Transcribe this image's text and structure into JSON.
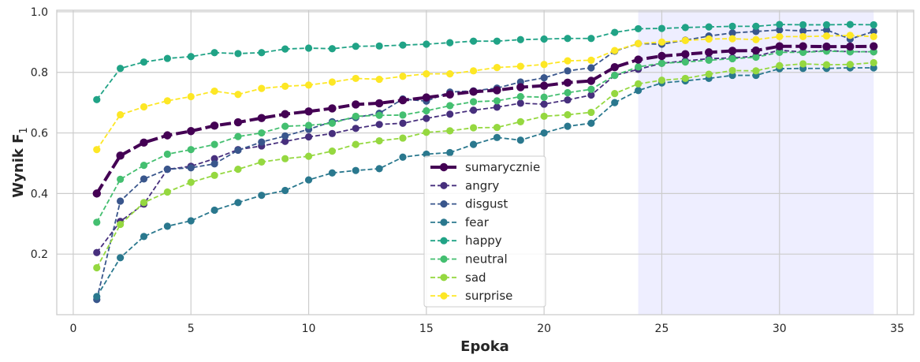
{
  "chart_data": {
    "type": "line",
    "xlabel": "Epoka",
    "ylabel": "Wynik F",
    "ylabel_sub": "1",
    "xlim": [
      -0.7,
      35.7
    ],
    "ylim": [
      0.0,
      1.005
    ],
    "xticks": [
      0,
      5,
      10,
      15,
      20,
      25,
      30,
      35
    ],
    "yticks": [
      0.2,
      0.4,
      0.6,
      0.8,
      1.0
    ],
    "ytick_labels": [
      "0.2",
      "0.4",
      "0.6",
      "0.8",
      "1.0"
    ],
    "grid": true,
    "legend_position": "lower-center",
    "highlight_span": {
      "x_start": 24,
      "x_end": 34,
      "color": "#eeeeff"
    },
    "x": [
      1,
      2,
      3,
      4,
      5,
      6,
      7,
      8,
      9,
      10,
      11,
      12,
      13,
      14,
      15,
      16,
      17,
      18,
      19,
      20,
      21,
      22,
      23,
      24,
      25,
      26,
      27,
      28,
      29,
      30,
      31,
      32,
      33,
      34
    ],
    "series": [
      {
        "name": "sumarycznie",
        "color": "#440154",
        "bold": true,
        "values": [
          0.4,
          0.525,
          0.568,
          0.592,
          0.606,
          0.624,
          0.635,
          0.649,
          0.662,
          0.671,
          0.681,
          0.694,
          0.698,
          0.708,
          0.717,
          0.727,
          0.736,
          0.741,
          0.751,
          0.756,
          0.766,
          0.772,
          0.817,
          0.842,
          0.854,
          0.86,
          0.866,
          0.871,
          0.872,
          0.886,
          0.886,
          0.885,
          0.885,
          0.886
        ]
      },
      {
        "name": "angry",
        "color": "#472f7d",
        "bold": false,
        "values": [
          0.205,
          0.308,
          0.365,
          0.48,
          0.49,
          0.515,
          0.545,
          0.557,
          0.572,
          0.587,
          0.598,
          0.615,
          0.628,
          0.632,
          0.648,
          0.662,
          0.675,
          0.685,
          0.698,
          0.695,
          0.709,
          0.725,
          0.79,
          0.81,
          0.83,
          0.838,
          0.845,
          0.848,
          0.853,
          0.873,
          0.867,
          0.872,
          0.868,
          0.868
        ]
      },
      {
        "name": "disgust",
        "color": "#39568c",
        "bold": false,
        "values": [
          0.05,
          0.375,
          0.448,
          0.48,
          0.485,
          0.498,
          0.543,
          0.57,
          0.59,
          0.612,
          0.637,
          0.651,
          0.665,
          0.712,
          0.705,
          0.735,
          0.739,
          0.748,
          0.768,
          0.782,
          0.805,
          0.815,
          0.87,
          0.895,
          0.893,
          0.906,
          0.92,
          0.93,
          0.935,
          0.94,
          0.937,
          0.94,
          0.91,
          0.935
        ]
      },
      {
        "name": "fear",
        "color": "#2a788e",
        "bold": false,
        "values": [
          0.06,
          0.188,
          0.258,
          0.292,
          0.31,
          0.345,
          0.37,
          0.394,
          0.41,
          0.445,
          0.468,
          0.476,
          0.482,
          0.52,
          0.53,
          0.535,
          0.562,
          0.585,
          0.576,
          0.6,
          0.622,
          0.632,
          0.7,
          0.74,
          0.765,
          0.772,
          0.78,
          0.79,
          0.79,
          0.812,
          0.813,
          0.813,
          0.815,
          0.815
        ]
      },
      {
        "name": "happy",
        "color": "#20a386",
        "bold": false,
        "values": [
          0.71,
          0.813,
          0.834,
          0.846,
          0.852,
          0.865,
          0.862,
          0.865,
          0.877,
          0.88,
          0.878,
          0.886,
          0.887,
          0.89,
          0.893,
          0.898,
          0.903,
          0.903,
          0.908,
          0.91,
          0.912,
          0.912,
          0.932,
          0.944,
          0.945,
          0.948,
          0.95,
          0.952,
          0.952,
          0.958,
          0.957,
          0.957,
          0.958,
          0.957
        ]
      },
      {
        "name": "neutral",
        "color": "#44bf70",
        "bold": false,
        "values": [
          0.305,
          0.447,
          0.493,
          0.53,
          0.545,
          0.562,
          0.588,
          0.6,
          0.622,
          0.625,
          0.632,
          0.655,
          0.658,
          0.659,
          0.673,
          0.69,
          0.703,
          0.706,
          0.72,
          0.718,
          0.733,
          0.744,
          0.79,
          0.818,
          0.83,
          0.834,
          0.84,
          0.845,
          0.85,
          0.866,
          0.866,
          0.87,
          0.868,
          0.868
        ]
      },
      {
        "name": "sad",
        "color": "#95d840",
        "bold": false,
        "values": [
          0.155,
          0.298,
          0.37,
          0.405,
          0.437,
          0.46,
          0.48,
          0.504,
          0.515,
          0.523,
          0.54,
          0.562,
          0.574,
          0.583,
          0.602,
          0.607,
          0.617,
          0.618,
          0.637,
          0.655,
          0.66,
          0.668,
          0.73,
          0.762,
          0.774,
          0.78,
          0.794,
          0.806,
          0.805,
          0.822,
          0.828,
          0.825,
          0.826,
          0.832
        ]
      },
      {
        "name": "surprise",
        "color": "#fde725",
        "bold": false,
        "values": [
          0.545,
          0.66,
          0.686,
          0.706,
          0.72,
          0.738,
          0.727,
          0.747,
          0.754,
          0.758,
          0.768,
          0.78,
          0.777,
          0.787,
          0.795,
          0.795,
          0.805,
          0.816,
          0.82,
          0.826,
          0.838,
          0.84,
          0.872,
          0.895,
          0.9,
          0.905,
          0.91,
          0.911,
          0.908,
          0.918,
          0.918,
          0.92,
          0.922,
          0.918
        ]
      }
    ]
  }
}
